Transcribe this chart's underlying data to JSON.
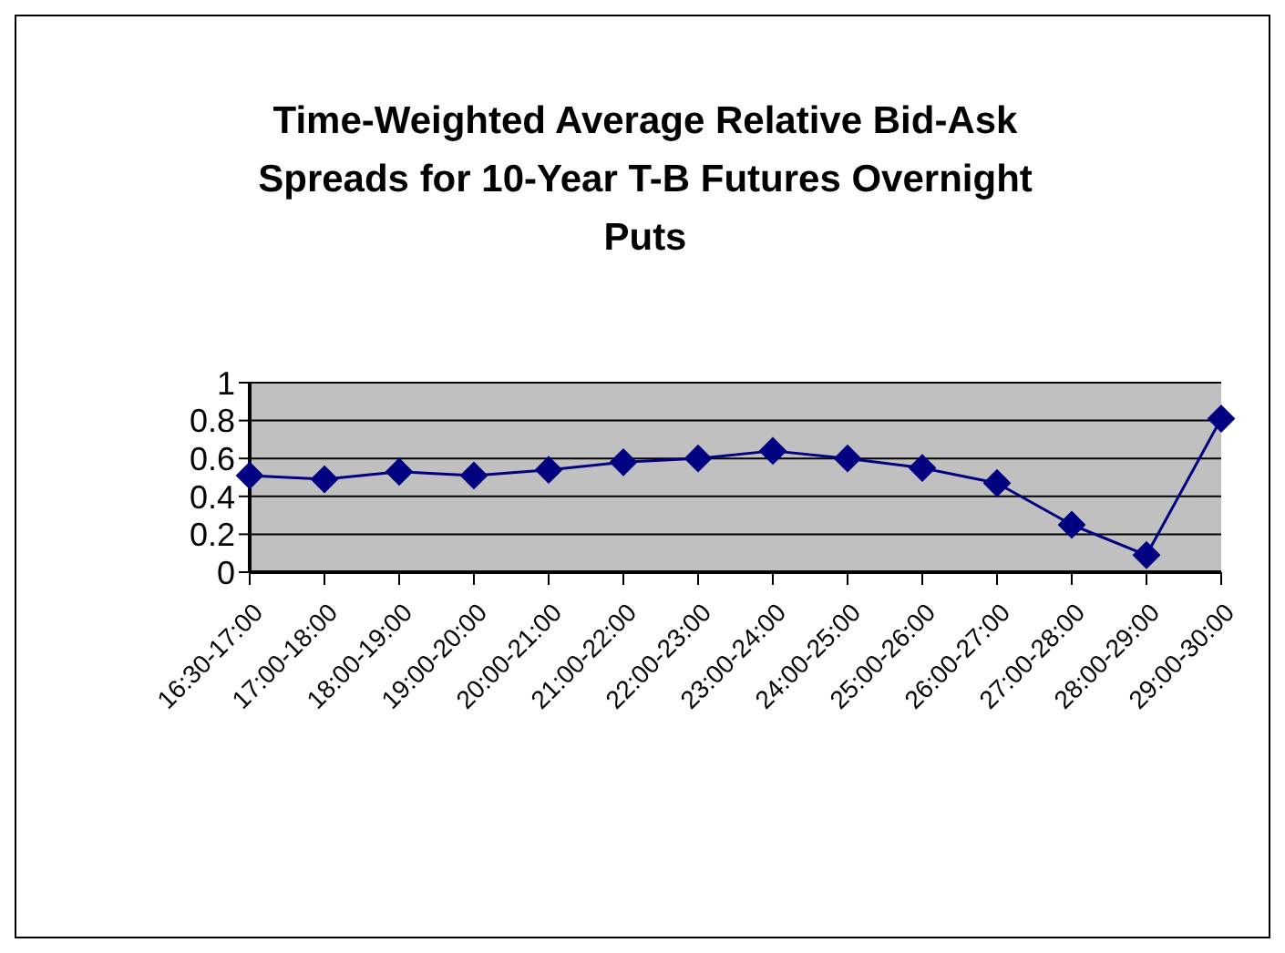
{
  "chart_data": {
    "type": "line",
    "title": "Time-Weighted Average Relative Bid-Ask Spreads for 10-Year T-B  Futures Overnight Puts",
    "categories": [
      "16:30-17:00",
      "17:00-18:00",
      "18:00-19:00",
      "19:00-20:00",
      "20:00-21:00",
      "21:00-22:00",
      "22:00-23:00",
      "23:00-24:00",
      "24:00-25:00",
      "25:00-26:00",
      "26:00-27:00",
      "27:00-28:00",
      "28:00-29:00",
      "29:00-30:00"
    ],
    "series": [
      {
        "color": "#000080",
        "values": [
          0.51,
          0.49,
          0.53,
          0.51,
          0.54,
          0.58,
          0.6,
          0.64,
          0.6,
          0.55,
          0.47,
          0.25,
          0.09,
          0.81
        ]
      }
    ],
    "ylim": [
      0,
      1
    ],
    "yticks": [
      0,
      0.2,
      0.4,
      0.6,
      0.8,
      1
    ],
    "grid": "y",
    "marker": "diamond",
    "line_style": "solid",
    "legend": false
  }
}
